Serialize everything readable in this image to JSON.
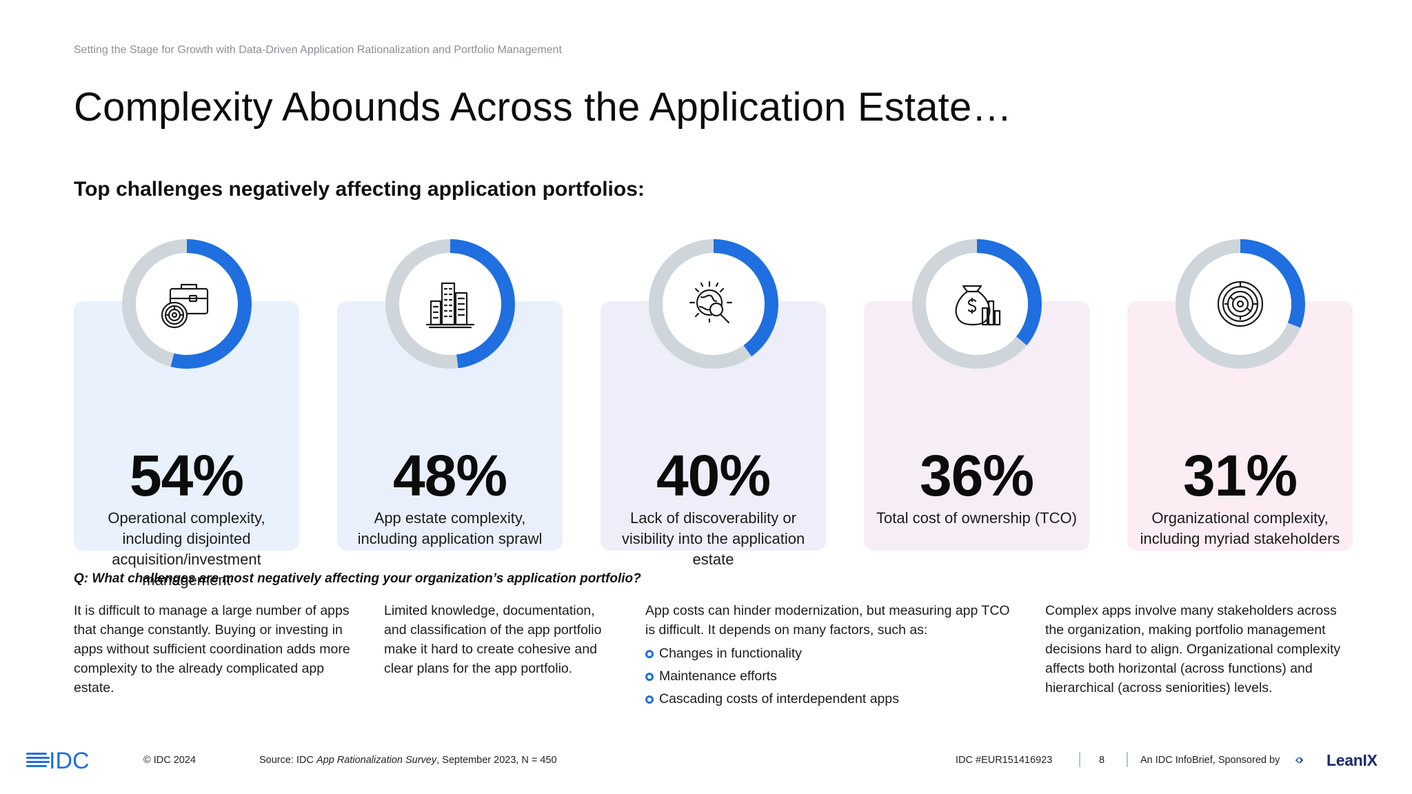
{
  "header": {
    "supertitle": "Setting the Stage for Growth with Data-Driven Application Rationalization and Portfolio Management",
    "title": "Complexity Abounds Across the Application Estate…",
    "subtitle": "Top challenges negatively affecting application portfolios:"
  },
  "cards": [
    {
      "icon": "briefcase-maze-icon",
      "percent_value": 54,
      "percent_label": "54%",
      "description": "Operational complexity, including disjointed acquisition/investment management",
      "bg_color": "#e8f1fc"
    },
    {
      "icon": "buildings-icon",
      "percent_value": 48,
      "percent_label": "48%",
      "description": "App estate complexity, including application sprawl",
      "bg_color": "#eaf0fb"
    },
    {
      "icon": "globe-magnifier-icon",
      "percent_value": 40,
      "percent_label": "40%",
      "description": "Lack of discoverability or visibility into the application estate",
      "bg_color": "#eeeefa"
    },
    {
      "icon": "money-bag-chart-icon",
      "percent_value": 36,
      "percent_label": "36%",
      "description": "Total cost of ownership (TCO)",
      "bg_color": "#f6edf6"
    },
    {
      "icon": "circular-maze-icon",
      "percent_value": 31,
      "percent_label": "31%",
      "description": "Organizational complexity, including myriad stakeholders",
      "bg_color": "#fbedf3"
    }
  ],
  "question": "Q: What challenges are most negatively affecting your organization’s application portfolio?",
  "columns": {
    "col1": "It is difficult to manage a large number of apps that change constantly. Buying or investing in apps without sufficient coordination adds more complexity to the already complicated app estate.",
    "col2": "Limited knowledge, documentation, and classification of the app portfolio make it hard to create cohesive and clear plans for the app portfolio.",
    "col3_intro": "App costs can hinder modernization, but measuring app TCO is difficult. It depends on many factors, such as:",
    "col3_bullets": [
      "Changes in functionality",
      "Maintenance efforts",
      "Cascading costs of interdependent apps"
    ],
    "col4": "Complex apps involve many stakeholders across the organization, making portfolio management decisions hard to align. Organizational complexity affects both horizontal (across functions) and hierarchical (across seniorities) levels."
  },
  "footer": {
    "logo": "IDC",
    "copyright": "© IDC 2024",
    "source_prefix": "Source: IDC ",
    "source_title": "App Rationalization Survey",
    "source_suffix": ", September 2023, N = 450",
    "doc_id": "IDC #EUR151416923",
    "page_number": "8",
    "sponsor_text": "An IDC InfoBrief, Sponsored by",
    "sponsor_logo": "LeanIX"
  },
  "colors": {
    "accent_blue": "#1f6fe0",
    "ring_gray": "#cfd6db",
    "bullet_blue": "#1f6fe0",
    "leanix_navy": "#1a2a6c"
  }
}
